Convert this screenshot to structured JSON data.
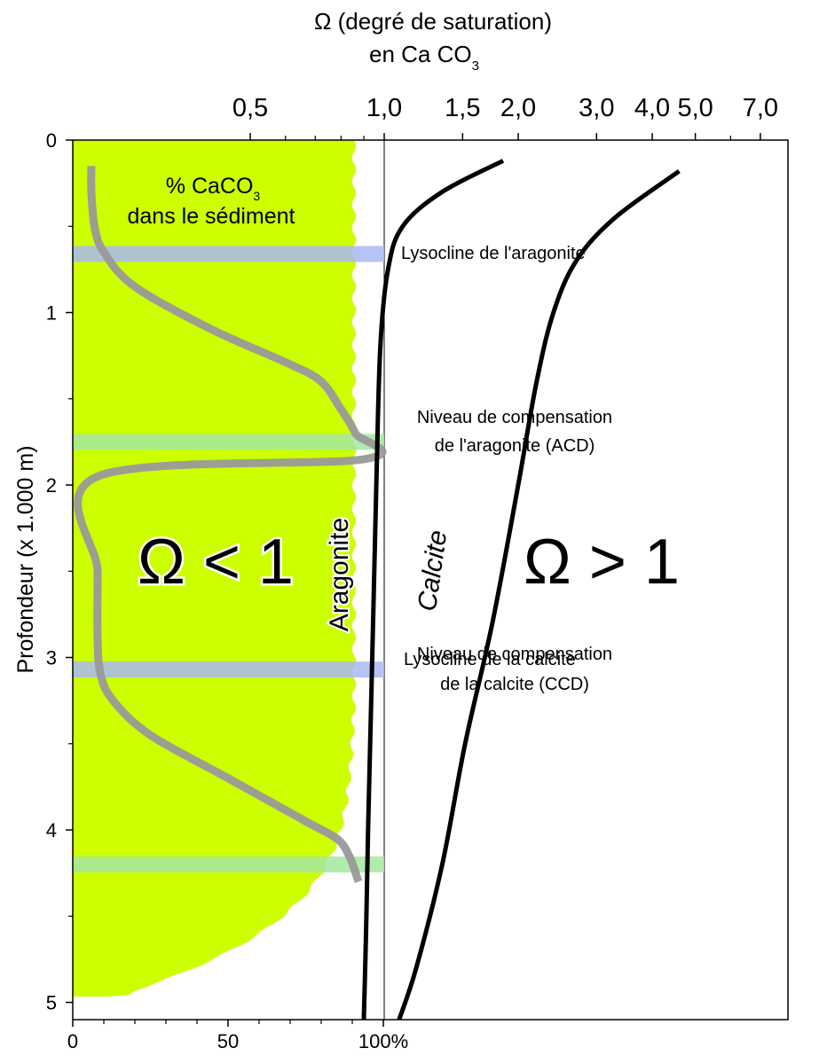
{
  "chart_data": {
    "type": "line",
    "top_axis": {
      "label_line1": "Ω (degré de saturation)",
      "label_line2_prefix": "en Ca CO",
      "label_line2_sub": "3",
      "scale": "log",
      "tick_labels": [
        "0,5",
        "1,0",
        "1,5",
        "2,0",
        "3,0",
        "4,0",
        "5,0",
        "7,0"
      ],
      "tick_values": [
        0.5,
        1.0,
        1.5,
        2.0,
        3.0,
        4.0,
        5.0,
        7.0
      ]
    },
    "left_axis": {
      "label": "Profondeur (x 1.000 m)",
      "tick_labels": [
        "0",
        "1",
        "2",
        "3",
        "4",
        "5"
      ],
      "tick_values": [
        0,
        1,
        2,
        3,
        4,
        5
      ],
      "ylim": [
        0,
        5.1
      ],
      "inverted": true
    },
    "bottom_axis": {
      "tick_labels": [
        "0",
        "50",
        "100%"
      ],
      "tick_values": [
        0,
        50,
        100
      ]
    },
    "series": [
      {
        "name": "Aragonite",
        "axis": "omega",
        "color": "#000000",
        "points": [
          [
            1.85,
            0.12
          ],
          [
            1.35,
            0.3
          ],
          [
            1.1,
            0.5
          ],
          [
            1.02,
            0.75
          ],
          [
            0.98,
            1.2
          ],
          [
            0.96,
            2.0
          ],
          [
            0.94,
            3.0
          ],
          [
            0.92,
            4.0
          ],
          [
            0.91,
            4.6
          ],
          [
            0.9,
            5.1
          ]
        ]
      },
      {
        "name": "Calcite",
        "axis": "omega",
        "color": "#000000",
        "points": [
          [
            4.6,
            0.18
          ],
          [
            3.3,
            0.45
          ],
          [
            2.7,
            0.7
          ],
          [
            2.4,
            1.0
          ],
          [
            2.2,
            1.4
          ],
          [
            2.0,
            2.0
          ],
          [
            1.75,
            2.8
          ],
          [
            1.52,
            3.5
          ],
          [
            1.35,
            4.2
          ],
          [
            1.18,
            4.8
          ],
          [
            1.08,
            5.1
          ]
        ]
      }
    ],
    "sediment_curve": {
      "label_prefix": "% CaCO",
      "label_sub": "3",
      "label_line2": "dans le sédiment",
      "color": "#999999",
      "points": [
        [
          6,
          0.15
        ],
        [
          6,
          0.3
        ],
        [
          7,
          0.5
        ],
        [
          10,
          0.65
        ],
        [
          20,
          0.85
        ],
        [
          45,
          1.1
        ],
        [
          70,
          1.3
        ],
        [
          80,
          1.4
        ],
        [
          86,
          1.55
        ],
        [
          91,
          1.7
        ],
        [
          94,
          1.85
        ],
        [
          8,
          1.95
        ],
        [
          8,
          2.5
        ],
        [
          8,
          2.9
        ],
        [
          9,
          3.1
        ],
        [
          13,
          3.25
        ],
        [
          25,
          3.45
        ],
        [
          50,
          3.7
        ],
        [
          75,
          3.95
        ],
        [
          85,
          4.05
        ],
        [
          89,
          4.15
        ],
        [
          92,
          4.3
        ]
      ]
    },
    "undersaturated_region": {
      "label": "Ω < 1",
      "color": "#ccff00"
    },
    "supersaturated_label": "Ω > 1",
    "horizons": [
      {
        "label": "Lysocline de l'aragonite",
        "depth": 0.66,
        "color": "#a9b9f3"
      },
      {
        "label_line1": "Niveau de compensation",
        "label_line2": "de l'aragonite (ACD)",
        "depth": 1.75,
        "color": "#a3e7a0"
      },
      {
        "label": "Lysocline de la calcite",
        "depth": 3.07,
        "color": "#a9b9f3"
      },
      {
        "label_line1": "Niveau de compensation",
        "label_line2": "de la calcite (CCD)",
        "depth": 4.2,
        "color": "#a3e7a0"
      }
    ]
  }
}
